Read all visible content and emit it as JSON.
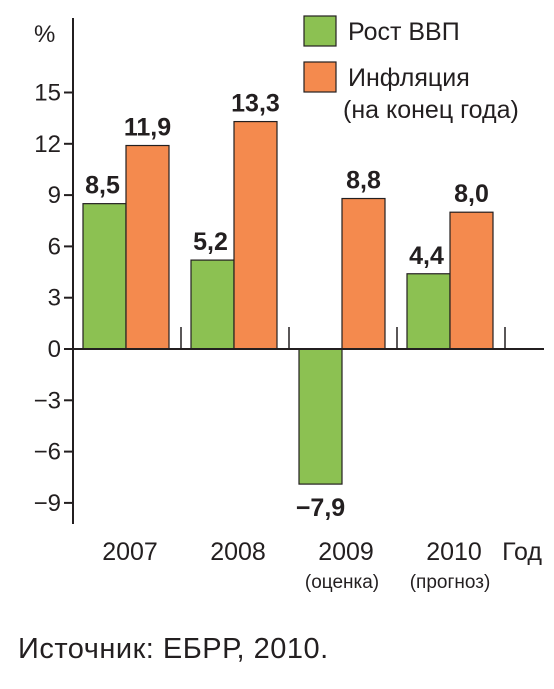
{
  "colors": {
    "growth": "#8cc152",
    "inflation": "#f48a4e",
    "axis": "#231f20"
  },
  "legend": {
    "growth": "Рост ВВП",
    "inflation_line1": "Инфляция",
    "inflation_line2": "(на конец года)"
  },
  "source": "Источник: ЕБРР, 2010.",
  "chart_data": {
    "type": "bar",
    "ylabel": "%",
    "xlabel": "Год",
    "ylim": [
      -10.5,
      18
    ],
    "yticks": [
      -9,
      -6,
      -3,
      0,
      3,
      6,
      9,
      12,
      15
    ],
    "ytick_labels": [
      "−9",
      "−6",
      "−3",
      "0",
      "3",
      "6",
      "9",
      "12",
      "15"
    ],
    "categories": [
      "2007",
      "2008",
      "2009",
      "2010"
    ],
    "category_notes": [
      "",
      "",
      "(оценка)",
      "(прогноз)"
    ],
    "series": [
      {
        "name": "Рост ВВП",
        "values": [
          8.5,
          5.2,
          -7.9,
          4.4
        ],
        "labels": [
          "8,5",
          "5,2",
          "−7,9",
          "4,4"
        ]
      },
      {
        "name": "Инфляция (на конец года)",
        "values": [
          11.9,
          13.3,
          8.8,
          8.0
        ],
        "labels": [
          "11,9",
          "13,3",
          "8,8",
          "8,0"
        ]
      }
    ]
  }
}
